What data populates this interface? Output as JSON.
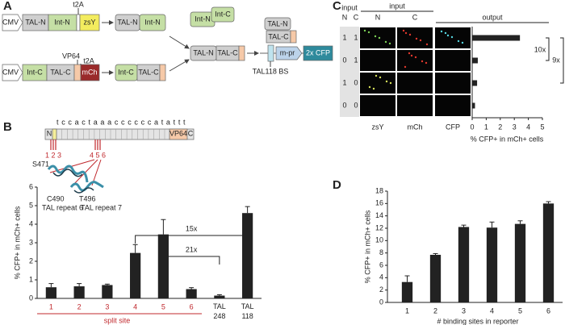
{
  "panels": [
    "A",
    "B",
    "C",
    "D"
  ],
  "construct": {
    "cmv": "CMV",
    "tal_n": "TAL-N",
    "int_n": "Int-N",
    "zsy": "zsY",
    "t2a": "t2A",
    "int_c": "Int-C",
    "tal_c": "TAL-C",
    "mch": "mCh",
    "vp64": "VP64",
    "mpr": "m-pr",
    "cfp": "2x CFP",
    "site": "TAL118 BS"
  },
  "protein": {
    "sequence": "t c c a c t a a a c c c c c c a t a t t t",
    "n": "N",
    "vp64": "VP64",
    "c": "C",
    "sites_a": "1 2 3",
    "sites_b": "4 5 6",
    "residues": [
      "S471",
      "C490",
      "T496"
    ],
    "repeats": [
      "TAL repeat 6",
      "TAL repeat 7"
    ]
  },
  "chart_data": [
    {
      "type": "bar",
      "ylabel": "% CFP+ in mCh+ cells",
      "categories": [
        "1",
        "2",
        "3",
        "4",
        "5",
        "6",
        "TAL 248",
        "TAL 118"
      ],
      "label_colors": [
        "#c0282d",
        "#c0282d",
        "#c0282d",
        "#c0282d",
        "#c0282d",
        "#c0282d",
        "#222222",
        "#222222"
      ],
      "values": [
        0.6,
        0.65,
        0.72,
        2.45,
        3.45,
        0.5,
        0.15,
        4.6
      ],
      "errors": [
        0.2,
        0.15,
        0.05,
        0.45,
        0.8,
        0.08,
        0.05,
        0.35
      ],
      "color": "#222222",
      "group_label": "split site",
      "annotations": [
        "15x",
        "21x"
      ],
      "ylim": [
        0,
        6
      ],
      "yticks": [
        0,
        1,
        2,
        3,
        4,
        5,
        6
      ]
    },
    {
      "type": "hbar",
      "xlabel": "% CFP+ in mCh+ cells",
      "row_headers": {
        "input": "input",
        "n": "N",
        "c": "C",
        "output": "output"
      },
      "input_n": [
        1,
        0,
        1,
        0
      ],
      "input_c": [
        1,
        1,
        0,
        0
      ],
      "channels": [
        "zsY",
        "mCh",
        "CFP"
      ],
      "values": [
        3.4,
        0.4,
        0.35,
        0.2
      ],
      "color": "#222222",
      "annotations": [
        "10x",
        "9x"
      ],
      "xlim": [
        0,
        5
      ],
      "xticks": [
        0,
        1,
        2,
        3,
        4,
        5
      ]
    },
    {
      "type": "bar",
      "ylabel": "% CFP+ in mCh+ cells",
      "xlabel": "# binding sites in reporter",
      "categories": [
        "1",
        "2",
        "3",
        "4",
        "5",
        "6"
      ],
      "values": [
        3.3,
        7.7,
        12.2,
        12.1,
        12.7,
        16.0
      ],
      "errors": [
        1.0,
        0.2,
        0.3,
        0.9,
        0.5,
        0.3
      ],
      "color": "#222222",
      "ylim": [
        0,
        18
      ],
      "yticks": [
        0,
        2,
        4,
        6,
        8,
        10,
        12,
        14,
        16,
        18
      ]
    }
  ]
}
